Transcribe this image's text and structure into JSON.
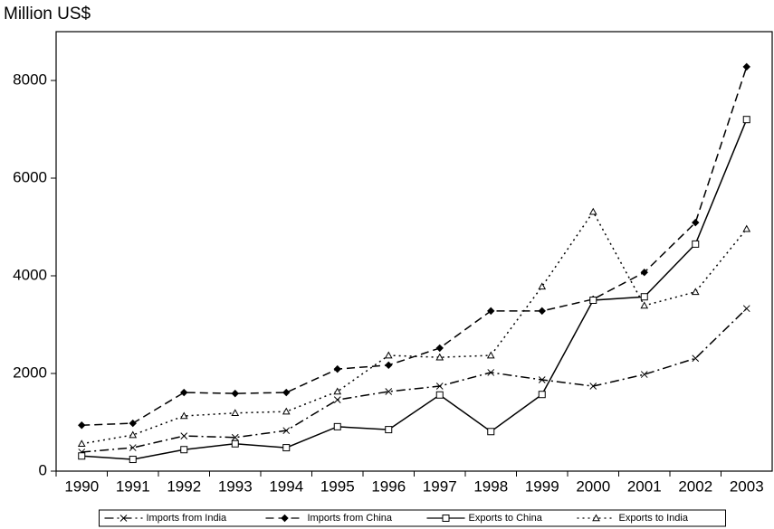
{
  "chart_data": {
    "type": "line",
    "y_label": "Million US$",
    "categories": [
      "1990",
      "1991",
      "1992",
      "1993",
      "1994",
      "1995",
      "1996",
      "1997",
      "1998",
      "1999",
      "2000",
      "2001",
      "2002",
      "2003"
    ],
    "series": [
      {
        "name": "Imports from India",
        "color": "#000000",
        "dash": "10,4,2,4",
        "marker": "x",
        "values": [
          390,
          480,
          720,
          690,
          830,
          1460,
          1630,
          1740,
          2020,
          1870,
          1740,
          1980,
          2310,
          3330
        ]
      },
      {
        "name": "Imports from China",
        "color": "#000000",
        "dash": "9,5",
        "marker": "diamond",
        "values": [
          940,
          980,
          1610,
          1590,
          1610,
          2090,
          2170,
          2520,
          3280,
          3280,
          3520,
          4070,
          5090,
          8280
        ]
      },
      {
        "name": "Exports to China",
        "color": "#000000",
        "dash": "none",
        "marker": "square",
        "values": [
          310,
          240,
          440,
          560,
          480,
          910,
          850,
          1560,
          810,
          1570,
          3500,
          3570,
          4650,
          7200
        ]
      },
      {
        "name": "Exports to India",
        "color": "#000000",
        "dash": "2,4",
        "marker": "triangle",
        "values": [
          560,
          740,
          1130,
          1190,
          1220,
          1630,
          2370,
          2330,
          2370,
          3780,
          5310,
          3390,
          3670,
          4960
        ]
      }
    ],
    "ylim": [
      0,
      9000
    ],
    "yticks": [
      0,
      2000,
      4000,
      6000,
      8000
    ],
    "legend": "bottom"
  }
}
